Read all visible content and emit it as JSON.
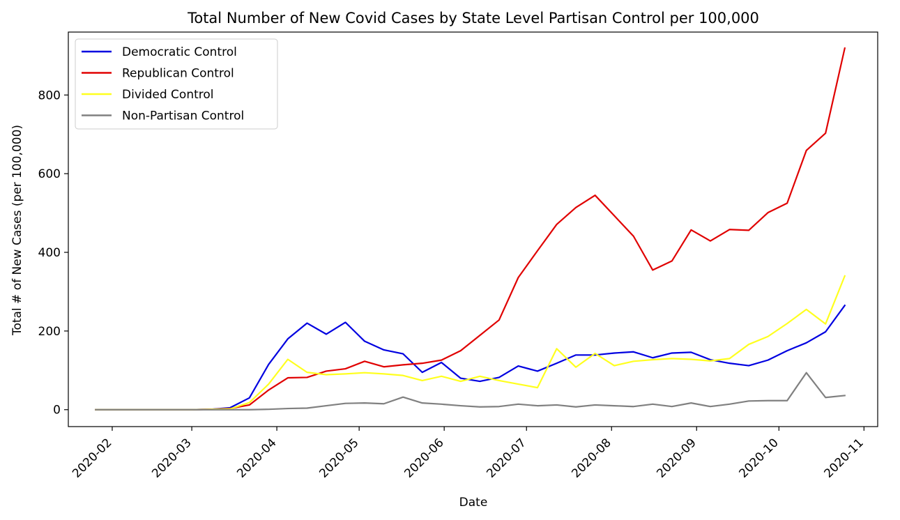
{
  "chart_data": {
    "type": "line",
    "title": "Total Number of New Covid Cases by State Level Partisan Control per 100,000",
    "xlabel": "Date",
    "ylabel": "Total # of New Cases (per 100,000)",
    "x_ticks": [
      "2020-02",
      "2020-03",
      "2020-04",
      "2020-05",
      "2020-06",
      "2020-07",
      "2020-08",
      "2020-09",
      "2020-10",
      "2020-11"
    ],
    "y_ticks": [
      0,
      200,
      400,
      600,
      800
    ],
    "xlim": [
      "2020-01-16",
      "2020-11-06"
    ],
    "ylim": [
      -43,
      960
    ],
    "legend_position": "upper-left",
    "grid": false,
    "x": [
      "2020-01-26",
      "2020-02-02",
      "2020-02-09",
      "2020-02-16",
      "2020-02-23",
      "2020-03-01",
      "2020-03-08",
      "2020-03-15",
      "2020-03-22",
      "2020-03-29",
      "2020-04-05",
      "2020-04-12",
      "2020-04-19",
      "2020-04-26",
      "2020-05-03",
      "2020-05-10",
      "2020-05-17",
      "2020-05-24",
      "2020-05-31",
      "2020-06-07",
      "2020-06-14",
      "2020-06-21",
      "2020-06-28",
      "2020-07-05",
      "2020-07-12",
      "2020-07-19",
      "2020-07-26",
      "2020-08-02",
      "2020-08-09",
      "2020-08-16",
      "2020-08-23",
      "2020-08-30",
      "2020-09-06",
      "2020-09-13",
      "2020-09-20",
      "2020-09-27",
      "2020-10-04",
      "2020-10-11",
      "2020-10-18",
      "2020-10-25"
    ],
    "series": [
      {
        "name": "Democratic Control",
        "color": "#0000e0",
        "values": [
          0,
          0,
          0,
          0,
          0,
          0,
          1,
          5,
          30,
          115,
          180,
          220,
          192,
          222,
          174,
          152,
          142,
          95,
          120,
          80,
          72,
          82,
          111,
          98,
          118,
          139,
          139,
          144,
          147,
          132,
          144,
          146,
          127,
          118,
          112,
          126,
          150,
          170,
          198,
          265
        ]
      },
      {
        "name": "Republican Control",
        "color": "#e00000",
        "values": [
          0,
          0,
          0,
          0,
          0,
          0,
          1,
          3,
          12,
          50,
          81,
          82,
          98,
          104,
          123,
          109,
          114,
          118,
          126,
          150,
          189,
          228,
          336,
          404,
          471,
          514,
          545,
          493,
          441,
          355,
          378,
          457,
          429,
          458,
          456,
          501,
          525,
          659,
          703,
          919
        ]
      },
      {
        "name": "Divided Control",
        "color": "#ffff1e",
        "values": [
          0,
          0,
          0,
          0,
          0,
          0,
          1,
          2,
          18,
          65,
          128,
          95,
          89,
          91,
          94,
          91,
          87,
          74,
          85,
          72,
          85,
          74,
          65,
          56,
          155,
          108,
          143,
          112,
          123,
          127,
          130,
          128,
          124,
          130,
          166,
          186,
          219,
          255,
          218,
          340
        ]
      },
      {
        "name": "Non-Partisan Control",
        "color": "#808080",
        "values": [
          0,
          0,
          0,
          0,
          0,
          0,
          0,
          0,
          0,
          1,
          3,
          4,
          10,
          16,
          17,
          15,
          32,
          17,
          14,
          10,
          7,
          8,
          14,
          10,
          12,
          7,
          12,
          10,
          8,
          14,
          8,
          17,
          8,
          14,
          22,
          23,
          23,
          94,
          31,
          36
        ]
      }
    ]
  }
}
